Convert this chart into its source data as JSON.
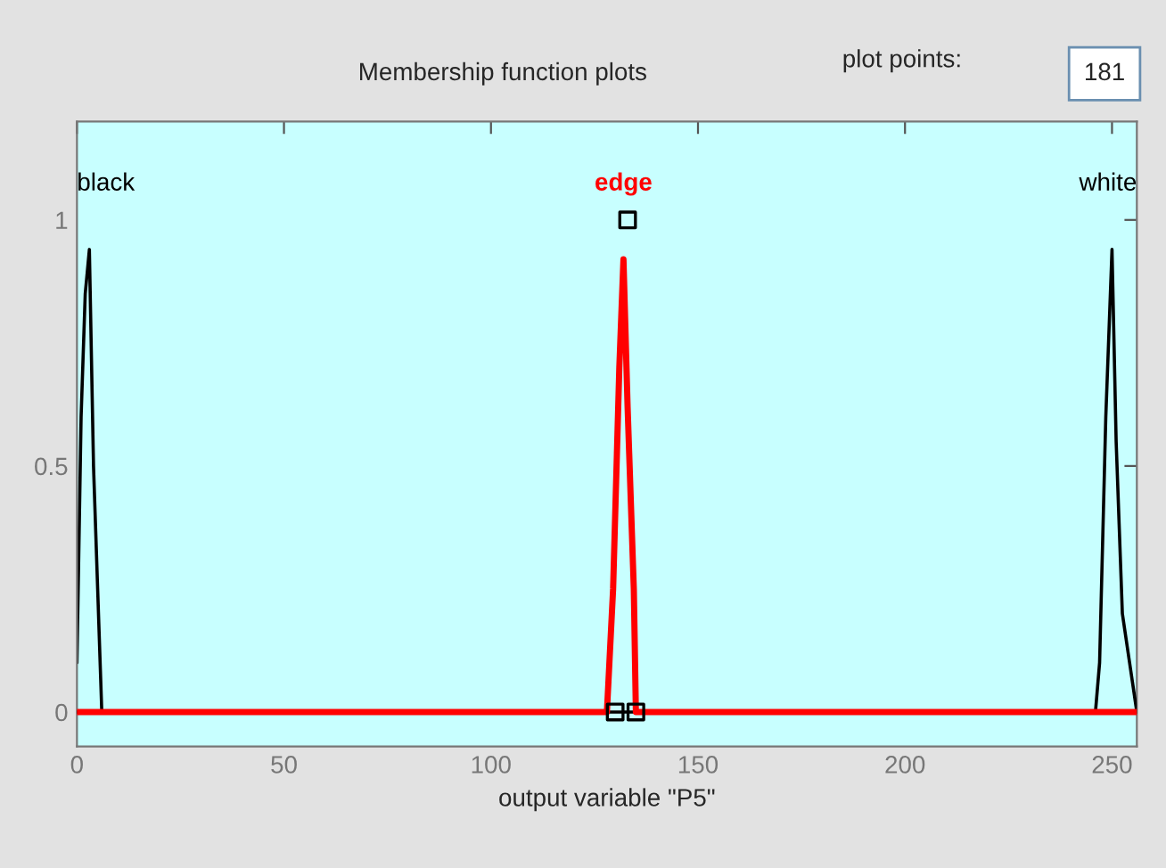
{
  "chart_data": {
    "type": "line",
    "xlabel": "output variable \"P5\"",
    "annotations": [
      "Membership function plots",
      "plot points:",
      "181"
    ],
    "xlim": [
      0,
      256
    ],
    "ylim": [
      -0.07,
      1.2
    ],
    "xticks": [
      0,
      50,
      100,
      150,
      200,
      250
    ],
    "yticks": [
      0,
      0.5,
      1
    ],
    "grid": false,
    "legend": false,
    "series": [
      {
        "name": "black",
        "color": "#000000",
        "x": [
          0,
          1,
          2,
          3,
          4,
          5,
          6
        ],
        "values": [
          0.1,
          0.6,
          0.85,
          0.94,
          0.5,
          0.25,
          0
        ]
      },
      {
        "name": "white",
        "color": "#000000",
        "x": [
          0,
          246,
          247,
          248.5,
          250,
          251,
          252.5,
          256
        ],
        "values": [
          0,
          0,
          0.1,
          0.6,
          0.94,
          0.55,
          0.2,
          0
        ]
      },
      {
        "name": "edge",
        "color": "#ff0000",
        "x": [
          0,
          128,
          129.5,
          131,
          132,
          133,
          134.5,
          135,
          256
        ],
        "values": [
          0,
          0,
          0.25,
          0.7,
          0.92,
          0.62,
          0.25,
          0,
          0
        ]
      },
      {
        "type": "scatter",
        "marker": "square",
        "color": "#000000",
        "x": [
          133,
          130,
          135
        ],
        "values": [
          1,
          0,
          0
        ]
      }
    ]
  }
}
